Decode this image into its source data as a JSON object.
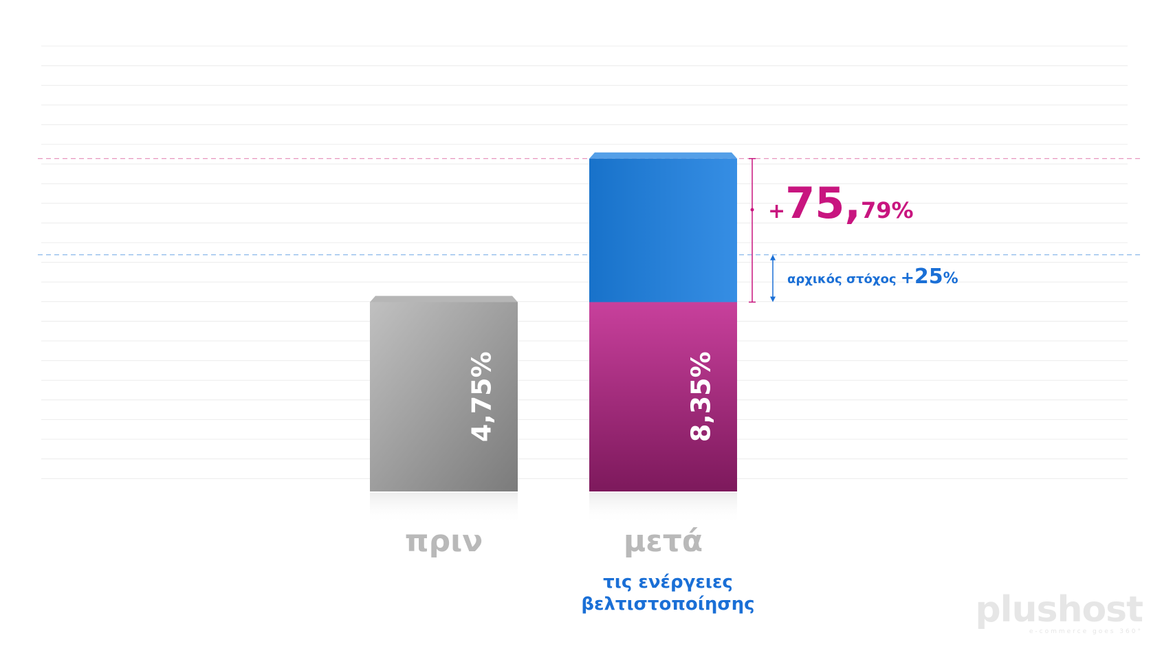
{
  "chart_data": {
    "type": "bar",
    "categories": [
      "πριν",
      "μετά"
    ],
    "values": [
      4.75,
      8.35
    ],
    "value_labels": [
      "4,75%",
      "8,35%"
    ],
    "baseline_segment_value": 4.75,
    "target_value": 5.9375,
    "category_sublabels": [
      "",
      "τις ενέργειες\nβελτιστοποίησης"
    ],
    "annotations": {
      "increase_label": {
        "sign": "+",
        "big": "75,",
        "small": "79%"
      },
      "target_label": {
        "text": "αρχικός στόχος ",
        "sign": "+",
        "big": "25",
        "small": "%"
      }
    },
    "colors": {
      "before_bar": "#9e9e9e",
      "after_bottom": "#c0268e",
      "after_top": "#1b7fe0",
      "increase_accent": "#c8157f",
      "target_accent": "#1a6fd6",
      "category_label": "#b9b9b9",
      "sublabel": "#1a6fd6"
    },
    "grid": true,
    "legend": "none"
  },
  "logo": {
    "main": "plushost",
    "tagline": "e-commerce goes 360°"
  }
}
